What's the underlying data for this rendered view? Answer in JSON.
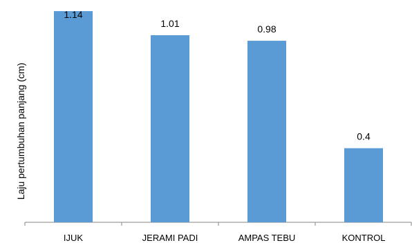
{
  "chart_data": {
    "type": "bar",
    "title": "",
    "xlabel": "",
    "ylabel": "Laju pertumbuhan panjang (cm)",
    "categories": [
      "IJUK",
      "JERAMI PADI",
      "AMPAS TEBU",
      "KONTROL"
    ],
    "values": [
      1.14,
      1.01,
      0.98,
      0.4
    ],
    "value_labels": [
      "1.14",
      "1.01",
      "0.98",
      "0.4"
    ],
    "ylim": [
      0,
      1.2
    ],
    "grid": false,
    "legend": "none",
    "bar_color": "#5b9bd5",
    "axis_color": "#868686"
  }
}
